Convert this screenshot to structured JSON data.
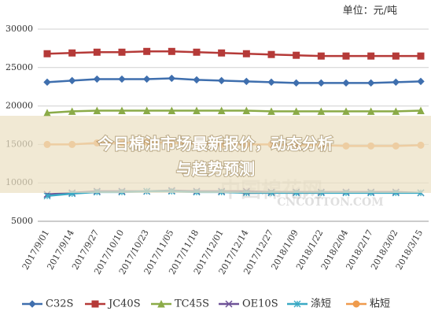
{
  "chart_data": {
    "type": "line",
    "unit_label": "单位：元/吨",
    "categories": [
      "2017/9/01",
      "2017/9/14",
      "2017/9/27",
      "2017/10/10",
      "2017/10/23",
      "2017/11/05",
      "2017/11/18",
      "2017/12/01",
      "2017/12/14",
      "2017/12/27",
      "2018/1/09",
      "2018/1/22",
      "2018/2/04",
      "2018/2/17",
      "2018/3/02",
      "2018/3/15"
    ],
    "series": [
      {
        "name": "C32S",
        "color": "#3f6fae",
        "marker": "diamond",
        "values": [
          23100,
          23300,
          23500,
          23500,
          23500,
          23600,
          23400,
          23300,
          23200,
          23100,
          23000,
          23000,
          23000,
          23000,
          23100,
          23200
        ]
      },
      {
        "name": "JC40S",
        "color": "#b53a38",
        "marker": "square",
        "values": [
          26800,
          26900,
          27000,
          27000,
          27100,
          27100,
          27000,
          26900,
          26800,
          26700,
          26600,
          26500,
          26500,
          26500,
          26500,
          26500
        ]
      },
      {
        "name": "TC45S",
        "color": "#8bab48",
        "marker": "triangle",
        "values": [
          19100,
          19300,
          19400,
          19400,
          19400,
          19400,
          19400,
          19400,
          19400,
          19300,
          19300,
          19300,
          19300,
          19300,
          19300,
          19400
        ]
      },
      {
        "name": "OE10S",
        "color": "#6e5297",
        "marker": "x",
        "values": [
          8500,
          8700,
          8900,
          8900,
          8900,
          9000,
          8900,
          8900,
          8900,
          8800,
          8800,
          8800,
          8800,
          8800,
          8800,
          8700
        ]
      },
      {
        "name": "涤短",
        "color": "#3aa9c4",
        "marker": "star",
        "values": [
          8300,
          8600,
          8800,
          8800,
          8900,
          8900,
          8800,
          8800,
          8700,
          8700,
          8700,
          8700,
          8700,
          8700,
          8700,
          8700
        ]
      },
      {
        "name": "粘短",
        "color": "#ef9b4d",
        "marker": "circle",
        "values": [
          15000,
          15000,
          15200,
          15200,
          15300,
          15200,
          15100,
          15000,
          15000,
          15000,
          14900,
          14900,
          14800,
          14800,
          14800,
          14900
        ]
      }
    ],
    "ylim": [
      5000,
      30000
    ],
    "yticks": [
      5000,
      10000,
      15000,
      20000,
      25000,
      30000
    ],
    "grid": true,
    "watermark": [
      "中国棉花网",
      "CNCOTTON.COM"
    ],
    "banner": [
      "今日棉油市场最新报价，动态分析",
      "与趋势预测"
    ]
  }
}
